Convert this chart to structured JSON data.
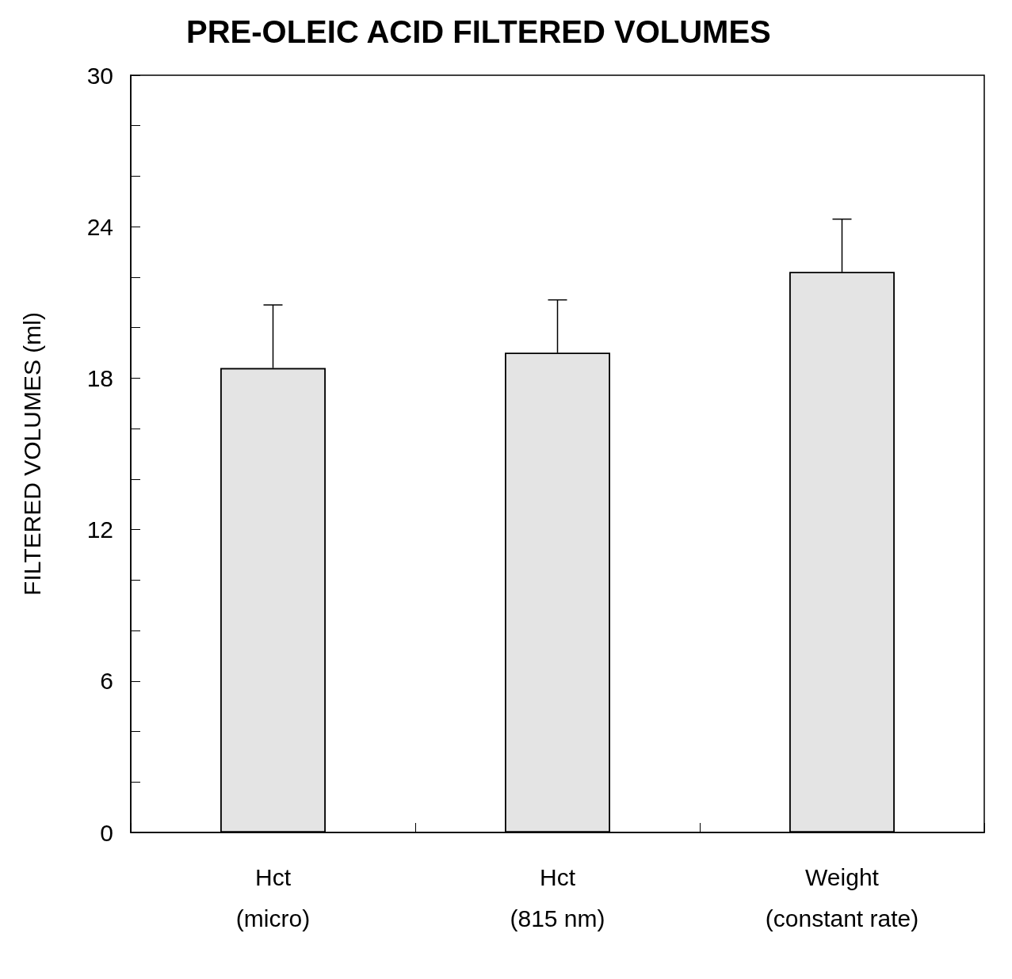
{
  "chart_data": {
    "type": "bar",
    "title": "PRE-OLEIC ACID FILTERED VOLUMES",
    "ylabel": "FILTERED VOLUMES (ml)",
    "categories": [
      "Hct\n(micro)",
      "Hct\n(815 nm)",
      "Weight\n(constant rate)"
    ],
    "values": [
      18.4,
      19.0,
      22.2
    ],
    "errors": [
      [
        18.4,
        20.9
      ],
      [
        19.0,
        21.1
      ],
      [
        22.2,
        24.3
      ]
    ],
    "color": "#e4e4e4",
    "ylim": [
      0,
      30
    ],
    "yticks": [
      0,
      {
        "value": 2,
        "label": null
      },
      {
        "value": 4,
        "label": null
      },
      6,
      {
        "value": 8,
        "label": null
      },
      {
        "value": 10,
        "label": null
      },
      12,
      {
        "value": 14,
        "label": null
      },
      {
        "value": 16,
        "label": null
      },
      18,
      {
        "value": 20,
        "label": null
      },
      {
        "value": 22,
        "label": null
      },
      24,
      {
        "value": 26,
        "label": null
      },
      {
        "value": 28,
        "label": null
      },
      30
    ],
    "grid": false
  }
}
